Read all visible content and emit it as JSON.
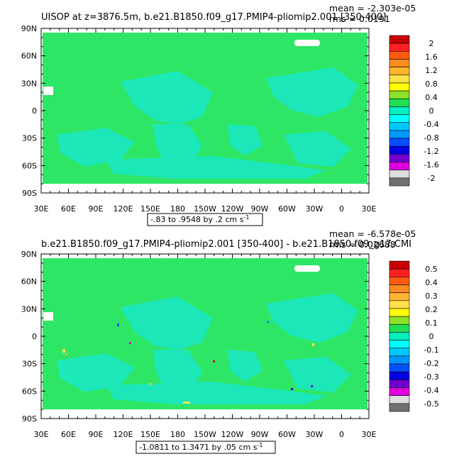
{
  "chart_data": [
    {
      "type": "heatmap",
      "title": "UISOP at z=3876.5m, b.e21.B1850.f09_g17.PMIP4-pliomip2.001 [350-400]",
      "stats": {
        "mean": "mean = -2.303e-05",
        "rms": "rms = 0.0191"
      },
      "x_ticks": [
        "30E",
        "60E",
        "90E",
        "120E",
        "150E",
        "180",
        "150W",
        "120W",
        "90W",
        "60W",
        "30W",
        "0",
        "30E"
      ],
      "y_ticks": [
        "90N",
        "60N",
        "30N",
        "0",
        "30S",
        "60S",
        "90S"
      ],
      "range_label": "-.83 to .9548 by .2 cm s",
      "range_units_sup": "-1",
      "colorbar": {
        "labels": [
          "2",
          "1.6",
          "1.2",
          "0.8",
          "0.4",
          "0",
          "-0.4",
          "-0.8",
          "-1.2",
          "-1.6",
          "-2"
        ],
        "colors": [
          "#c80000",
          "#ff2020",
          "#ff5a10",
          "#ff8a1e",
          "#ffb430",
          "#ffe24a",
          "#ffff00",
          "#8ce02a",
          "#22dd55",
          "#00f0c0",
          "#00ffff",
          "#00c8ff",
          "#0096ff",
          "#0050ff",
          "#0000e0",
          "#7000d0",
          "#e000e0",
          "#dddddd",
          "#707070"
        ]
      }
    },
    {
      "type": "heatmap",
      "title": "b.e21.B1850.f09_g17.PMIP4-pliomip2.001 [350-400] - b.e21.B1850.f09_g17.CMI",
      "stats": {
        "mean": "mean = -6.578e-05",
        "rms": "rms = 0.02688"
      },
      "x_ticks": [
        "30E",
        "60E",
        "90E",
        "120E",
        "150E",
        "180",
        "150W",
        "120W",
        "90W",
        "60W",
        "30W",
        "0",
        "30E"
      ],
      "y_ticks": [
        "90N",
        "60N",
        "30N",
        "0",
        "30S",
        "60S",
        "90S"
      ],
      "range_label": "-1.0811 to 1.3471 by .05 cm s",
      "range_units_sup": "-1",
      "colorbar": {
        "labels": [
          "0.5",
          "0.4",
          "0.3",
          "0.2",
          "0.1",
          "0",
          "-0.1",
          "-0.2",
          "-0.3",
          "-0.4",
          "-0.5"
        ],
        "colors": [
          "#c80000",
          "#ff2020",
          "#ff5a10",
          "#ff8a1e",
          "#ffb430",
          "#ffe24a",
          "#ffff00",
          "#8ce02a",
          "#22dd55",
          "#00f0c0",
          "#00ffff",
          "#00c8ff",
          "#0096ff",
          "#0050ff",
          "#0000e0",
          "#7000d0",
          "#e000e0",
          "#dddddd",
          "#707070"
        ]
      }
    }
  ],
  "colors": {
    "field": "#2ee665",
    "ocean_low": "#19e8c8",
    "missing": "#ffffff"
  }
}
